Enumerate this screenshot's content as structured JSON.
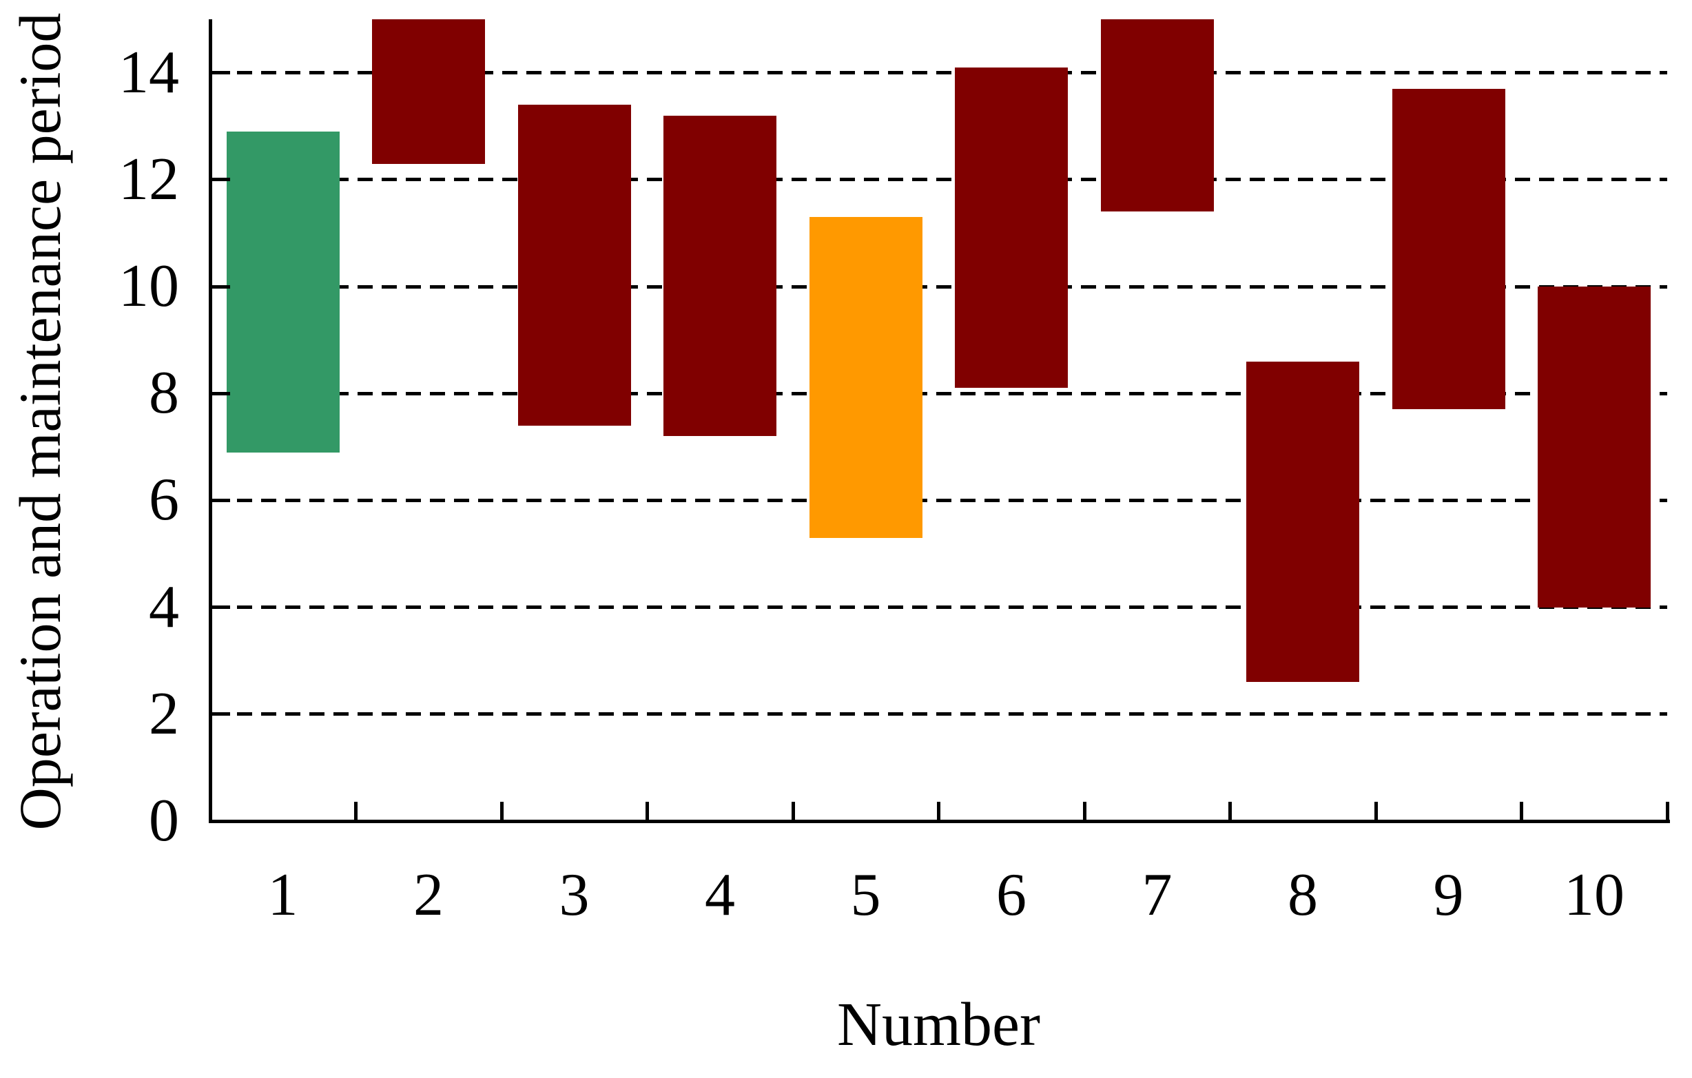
{
  "figure": {
    "background": "#FFFFFF",
    "axis_color": "#000000",
    "text_color": "#000000"
  },
  "chart_data": {
    "type": "bar",
    "variant": "floating-range-vertical-bars",
    "title": "",
    "xlabel": "Number",
    "ylabel": "Operation and maintenance period",
    "categories": [
      "1",
      "2",
      "3",
      "4",
      "5",
      "6",
      "7",
      "8",
      "9",
      "10"
    ],
    "ylim": [
      0,
      15
    ],
    "yticks": [
      0,
      2,
      4,
      6,
      8,
      10,
      12,
      14
    ],
    "grid": {
      "horizontal_dashed_at": [
        2,
        4,
        6,
        8,
        10,
        12,
        14
      ],
      "color": "#000000",
      "style": "dashed"
    },
    "legend": null,
    "bar_span_units": 6,
    "bars": [
      {
        "category": "1",
        "low": 6.9,
        "high": 12.9,
        "color": "#339966",
        "clipped_top": false
      },
      {
        "category": "2",
        "low": 12.3,
        "high": 15.0,
        "color": "#800000",
        "clipped_top": true
      },
      {
        "category": "3",
        "low": 7.4,
        "high": 13.4,
        "color": "#800000",
        "clipped_top": false
      },
      {
        "category": "4",
        "low": 7.2,
        "high": 13.2,
        "color": "#800000",
        "clipped_top": false
      },
      {
        "category": "5",
        "low": 5.3,
        "high": 11.3,
        "color": "#FF9900",
        "clipped_top": false
      },
      {
        "category": "6",
        "low": 8.1,
        "high": 14.1,
        "color": "#800000",
        "clipped_top": false
      },
      {
        "category": "7",
        "low": 11.4,
        "high": 15.0,
        "color": "#800000",
        "clipped_top": true
      },
      {
        "category": "8",
        "low": 2.6,
        "high": 8.6,
        "color": "#800000",
        "clipped_top": false
      },
      {
        "category": "9",
        "low": 7.7,
        "high": 13.7,
        "color": "#800000",
        "clipped_top": false
      },
      {
        "category": "10",
        "low": 4.0,
        "high": 10.0,
        "color": "#800000",
        "clipped_top": false
      }
    ],
    "colors": {
      "default_bar": "#800000",
      "green_bar": "#339966",
      "orange_bar": "#FF9900"
    }
  }
}
